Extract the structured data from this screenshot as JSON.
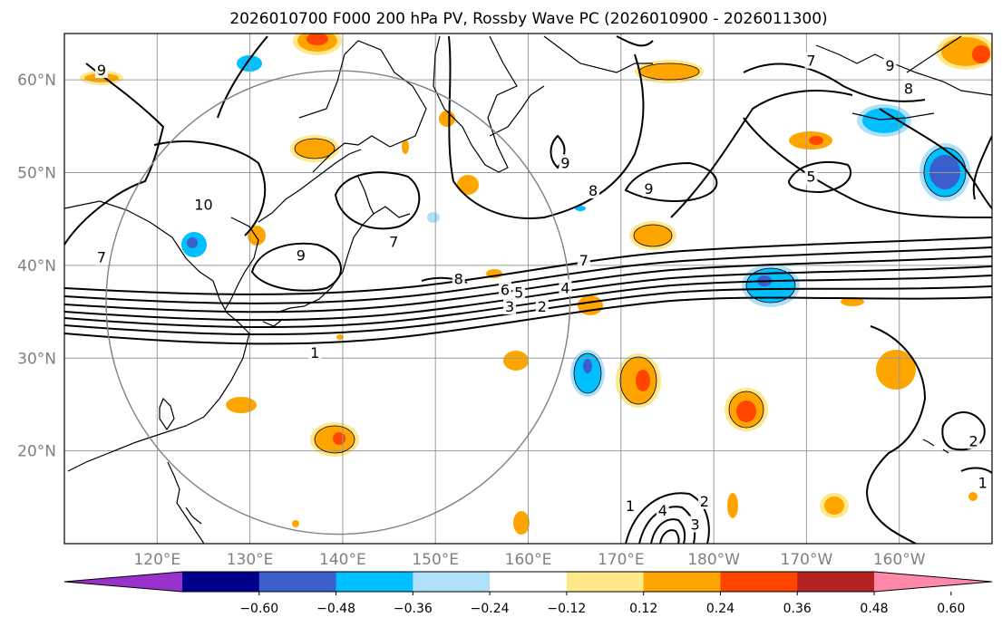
{
  "figure": {
    "title": "2026010700 F000 200 hPa PV, Rossby Wave PC (2026010900 - 2026011300)"
  },
  "map": {
    "lon_range": [
      110,
      210
    ],
    "lat_range": [
      10,
      65
    ],
    "lon_ticks": [
      {
        "lon": 120,
        "label": "120°E"
      },
      {
        "lon": 130,
        "label": "130°E"
      },
      {
        "lon": 140,
        "label": "140°E"
      },
      {
        "lon": 150,
        "label": "150°E"
      },
      {
        "lon": 160,
        "label": "160°E"
      },
      {
        "lon": 170,
        "label": "170°E"
      },
      {
        "lon": 180,
        "label": "180°W"
      },
      {
        "lon": 190,
        "label": "170°W"
      },
      {
        "lon": 200,
        "label": "160°W"
      }
    ],
    "lat_ticks": [
      {
        "lat": 20,
        "label": "20°N"
      },
      {
        "lat": 30,
        "label": "30°N"
      },
      {
        "lat": 40,
        "label": "40°N"
      },
      {
        "lat": 50,
        "label": "50°N"
      },
      {
        "lat": 60,
        "label": "60°N"
      }
    ],
    "grid": true,
    "circle": {
      "center_lon": 139.5,
      "center_lat": 36,
      "radius_deg": 25
    }
  },
  "colorbar": {
    "colors": [
      "#9932cc",
      "#00008b",
      "#3a5fcd",
      "#00bfff",
      "#b0e0f8",
      "#ffffff",
      "#ffe88a",
      "#ffa500",
      "#ff4500",
      "#b22222",
      "#ff88aa"
    ],
    "tick_labels": [
      "−0.60",
      "−0.48",
      "−0.36",
      "−0.24",
      "−0.12",
      "0.12",
      "0.24",
      "0.36",
      "0.48",
      "0.60"
    ]
  },
  "pv_contour_labels": [
    {
      "text": "1",
      "lon": 137,
      "lat": 30.5
    },
    {
      "text": "2",
      "lon": 161.5,
      "lat": 35.5
    },
    {
      "text": "3",
      "lon": 158,
      "lat": 35.5
    },
    {
      "text": "4",
      "lon": 164,
      "lat": 37.5
    },
    {
      "text": "5",
      "lon": 159,
      "lat": 37
    },
    {
      "text": "6",
      "lon": 157.5,
      "lat": 37.3
    },
    {
      "text": "7",
      "lon": 166,
      "lat": 40.5
    },
    {
      "text": "8",
      "lon": 152.5,
      "lat": 38.5
    },
    {
      "text": "9",
      "lon": 135.5,
      "lat": 41
    },
    {
      "text": "7",
      "lon": 145.5,
      "lat": 42.5
    },
    {
      "text": "7",
      "lon": 114,
      "lat": 40.8
    },
    {
      "text": "10",
      "lon": 125,
      "lat": 46.5
    },
    {
      "text": "9",
      "lon": 114,
      "lat": 61
    },
    {
      "text": "9",
      "lon": 164,
      "lat": 51
    },
    {
      "text": "8",
      "lon": 167,
      "lat": 48
    },
    {
      "text": "9",
      "lon": 173,
      "lat": 48.2
    },
    {
      "text": "5",
      "lon": 190.5,
      "lat": 49.5
    },
    {
      "text": "7",
      "lon": 190.5,
      "lat": 62
    },
    {
      "text": "9",
      "lon": 199,
      "lat": 61.5
    },
    {
      "text": "8",
      "lon": 201,
      "lat": 59
    },
    {
      "text": "1",
      "lon": 209,
      "lat": 16.5
    },
    {
      "text": "2",
      "lon": 208,
      "lat": 21
    },
    {
      "text": "1",
      "lon": 171,
      "lat": 14
    },
    {
      "text": "2",
      "lon": 179,
      "lat": 14.5
    },
    {
      "text": "3",
      "lon": 178,
      "lat": 12
    },
    {
      "text": "4",
      "lon": 174.5,
      "lat": 13.5
    }
  ]
}
